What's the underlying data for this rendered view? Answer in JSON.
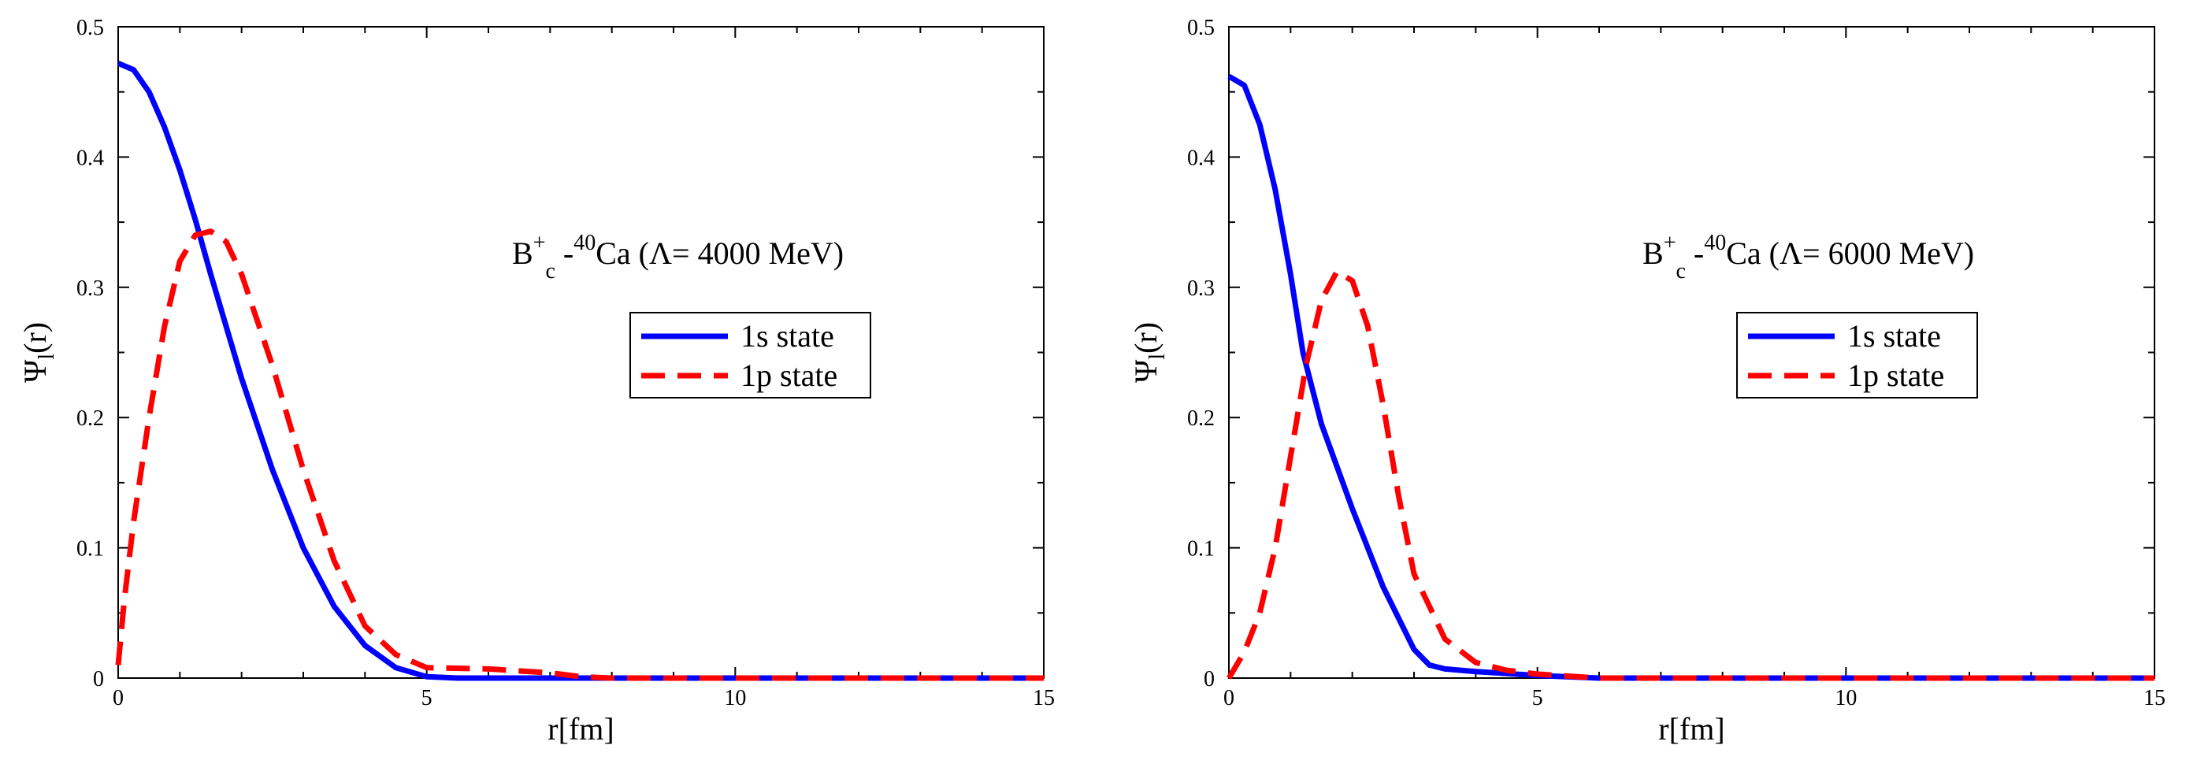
{
  "chart_data": [
    {
      "type": "line",
      "title": "",
      "xlabel": "r[fm]",
      "ylabel": {
        "main": "Ψ",
        "sub": "l",
        "tail": "(r)"
      },
      "xlim": [
        0,
        15
      ],
      "ylim": [
        0,
        0.5
      ],
      "xticks": [
        "0",
        "5",
        "10",
        "15"
      ],
      "yticks": [
        "0",
        "0.1",
        "0.2",
        "0.3",
        "0.4",
        "0.5"
      ],
      "annotation": {
        "b": "B",
        "sup_plus": "+",
        "sub_c": "c",
        "dash": " -",
        "sup_mass": "40",
        "rest": "Ca (Λ= 4000 MeV)"
      },
      "legend": {
        "position": "center-right"
      },
      "series": [
        {
          "name": "1s state",
          "color": "#0000ff",
          "style": "solid",
          "x": [
            0,
            0.25,
            0.5,
            0.75,
            1.0,
            1.25,
            1.5,
            2.0,
            2.5,
            3.0,
            3.5,
            4.0,
            4.5,
            5.0,
            5.5,
            6,
            8,
            10,
            12,
            15
          ],
          "y": [
            0.472,
            0.467,
            0.45,
            0.423,
            0.39,
            0.352,
            0.31,
            0.23,
            0.16,
            0.1,
            0.055,
            0.025,
            0.008,
            0.001,
            0.0,
            0.0,
            0.0,
            0.0,
            0.0,
            0.0
          ]
        },
        {
          "name": "1p state",
          "color": "#ff0000",
          "style": "dashed",
          "x": [
            0,
            0.1,
            0.25,
            0.5,
            0.75,
            1.0,
            1.25,
            1.5,
            1.75,
            2.0,
            2.5,
            3.0,
            3.5,
            4.0,
            4.5,
            5.0,
            6.0,
            7.0,
            7.5,
            8,
            10,
            12,
            15
          ],
          "y": [
            0.01,
            0.06,
            0.12,
            0.2,
            0.27,
            0.32,
            0.34,
            0.343,
            0.335,
            0.31,
            0.24,
            0.16,
            0.09,
            0.04,
            0.018,
            0.008,
            0.007,
            0.004,
            0.001,
            0.0,
            0.0,
            0.0,
            0.0
          ]
        }
      ]
    },
    {
      "type": "line",
      "title": "",
      "xlabel": "r[fm]",
      "ylabel": {
        "main": "Ψ",
        "sub": "l",
        "tail": "(r)"
      },
      "xlim": [
        0,
        15
      ],
      "ylim": [
        0,
        0.5
      ],
      "xticks": [
        "0",
        "5",
        "10",
        "15"
      ],
      "yticks": [
        "0",
        "0.1",
        "0.2",
        "0.3",
        "0.4",
        "0.5"
      ],
      "annotation": {
        "b": "B",
        "sup_plus": "+",
        "sub_c": "c",
        "dash": " -",
        "sup_mass": "40",
        "rest": "Ca (Λ= 6000 MeV)"
      },
      "legend": {
        "position": "center-right"
      },
      "series": [
        {
          "name": "1s state",
          "color": "#0000ff",
          "style": "solid",
          "x": [
            0,
            0.25,
            0.5,
            0.75,
            1.0,
            1.2,
            1.5,
            2.0,
            2.5,
            3.0,
            3.25,
            3.5,
            4.0,
            5.0,
            6.0,
            8,
            10,
            12,
            15
          ],
          "y": [
            0.462,
            0.455,
            0.425,
            0.375,
            0.31,
            0.25,
            0.195,
            0.13,
            0.07,
            0.022,
            0.01,
            0.007,
            0.005,
            0.002,
            0.0,
            0.0,
            0.0,
            0.0,
            0.0
          ]
        },
        {
          "name": "1p state",
          "color": "#ff0000",
          "style": "dashed",
          "x": [
            0,
            0.25,
            0.5,
            0.75,
            1.0,
            1.25,
            1.5,
            1.75,
            2.0,
            2.25,
            2.5,
            2.75,
            3.0,
            3.5,
            4.0,
            4.5,
            5.0,
            6.0,
            8,
            10,
            12,
            15
          ],
          "y": [
            0.0,
            0.02,
            0.05,
            0.1,
            0.17,
            0.24,
            0.29,
            0.312,
            0.305,
            0.27,
            0.21,
            0.14,
            0.08,
            0.03,
            0.012,
            0.006,
            0.003,
            0.0,
            0.0,
            0.0,
            0.0,
            0.0
          ]
        }
      ]
    }
  ]
}
